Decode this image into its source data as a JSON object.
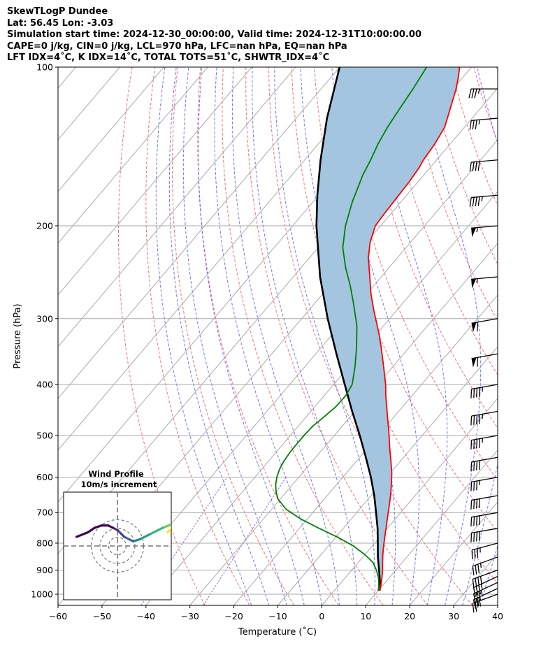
{
  "header": {
    "line1": "SkewTLogP Dundee",
    "line2": "Lat: 56.45   Lon: -3.03",
    "line3": "Simulation start time: 2024-12-30_00:00:00, Valid time: 2024-12-31T10:00:00.00",
    "line4": "CAPE=0 j/kg, CIN=0 j/kg, LCL=970 hPa, LFC=nan hPa, EQ=nan hPa",
    "line5": "LFT IDX=4˚C, K IDX=14˚C, TOTAL TOTS=51˚C, SHWTR_IDX=4˚C"
  },
  "colors": {
    "temperature": "#ff0000",
    "dewpoint": "#008000",
    "parcel": "#000000",
    "cape_fill": "#a3c5df",
    "dry_adiabat": "#ff5555",
    "moist_adiabat": "#4a55ff",
    "mixing_ratio": "#9a4fd0",
    "isotherm": "#aaaaaa"
  },
  "chart_data": {
    "type": "line",
    "xlabel": "Temperature (˚C)",
    "ylabel": "Pressure (hPa)",
    "scale": "skew-T log-P",
    "xlim": [
      -60,
      40
    ],
    "ylim": [
      1050,
      100
    ],
    "x_ticks": [
      "−60",
      "−50",
      "−40",
      "−30",
      "−20",
      "−10",
      "0",
      "10",
      "20",
      "30",
      "40"
    ],
    "y_ticks": [
      "100",
      "200",
      "300",
      "400",
      "500",
      "600",
      "700",
      "800",
      "900",
      "1000"
    ],
    "grid": true,
    "series": [
      {
        "key": "temperature",
        "pressure": [
          985,
          960,
          930,
          900,
          870,
          840,
          800,
          760,
          720,
          680,
          650,
          620,
          590,
          560,
          530,
          510,
          490,
          460,
          420,
          400,
          370,
          340,
          320,
          290,
          270,
          250,
          230,
          215,
          200,
          190,
          175,
          165,
          155,
          150,
          140,
          130,
          120,
          110,
          105,
          100
        ],
        "values": [
          10.3,
          9.5,
          8.3,
          7.0,
          5.5,
          4.0,
          2.1,
          0.2,
          -1.8,
          -3.9,
          -5.6,
          -7.5,
          -9.6,
          -12.1,
          -14.8,
          -16.6,
          -18.5,
          -21.6,
          -26.0,
          -28.2,
          -32.1,
          -36.4,
          -39.6,
          -45.1,
          -48.9,
          -52.6,
          -56.6,
          -59.2,
          -61.2,
          -61.5,
          -61.8,
          -62.0,
          -62.5,
          -63.0,
          -63.5,
          -64.5,
          -66.8,
          -69.3,
          -70.9,
          -72.7
        ]
      },
      {
        "key": "dewpoint",
        "pressure": [
          985,
          960,
          930,
          900,
          870,
          840,
          810,
          780,
          750,
          720,
          690,
          660,
          640,
          620,
          600,
          580,
          560,
          540,
          520,
          500,
          480,
          460,
          440,
          420,
          400,
          370,
          340,
          310,
          280,
          260,
          240,
          220,
          200,
          180,
          160,
          150,
          140,
          130,
          120,
          110,
          100
        ],
        "values": [
          10.0,
          9.0,
          7.5,
          5.6,
          3.3,
          -0.2,
          -4.3,
          -9.5,
          -15.5,
          -21.5,
          -26.7,
          -30.5,
          -32.3,
          -33.8,
          -35.0,
          -35.9,
          -36.5,
          -36.8,
          -36.9,
          -36.9,
          -36.7,
          -35.9,
          -35.2,
          -35.1,
          -35.8,
          -38.6,
          -42.0,
          -46.0,
          -51.3,
          -55.3,
          -59.9,
          -64.4,
          -68.0,
          -71.1,
          -73.9,
          -75.0,
          -76.4,
          -77.5,
          -78.3,
          -79.1,
          -80.2
        ]
      },
      {
        "key": "parcel",
        "pressure": [
          985,
          970,
          940,
          900,
          850,
          800,
          750,
          700,
          650,
          600,
          550,
          500,
          450,
          400,
          350,
          300,
          250,
          200,
          175,
          150,
          125,
          100
        ],
        "values": [
          10.3,
          9.8,
          8.3,
          6.2,
          3.4,
          0.7,
          -2.2,
          -5.6,
          -9.3,
          -13.6,
          -18.6,
          -24.2,
          -30.6,
          -37.5,
          -45.3,
          -54.1,
          -63.9,
          -74.6,
          -80.3,
          -86.4,
          -93.0,
          -100.0
        ]
      }
    ],
    "wind_barbs": [
      {
        "pressure": 1000,
        "direction": 250,
        "speed": 25
      },
      {
        "pressure": 975,
        "direction": 245,
        "speed": 30
      },
      {
        "pressure": 950,
        "direction": 245,
        "speed": 35
      },
      {
        "pressure": 925,
        "direction": 245,
        "speed": 35
      },
      {
        "pressure": 900,
        "direction": 250,
        "speed": 40
      },
      {
        "pressure": 850,
        "direction": 250,
        "speed": 35
      },
      {
        "pressure": 800,
        "direction": 255,
        "speed": 35
      },
      {
        "pressure": 750,
        "direction": 260,
        "speed": 40
      },
      {
        "pressure": 700,
        "direction": 260,
        "speed": 40
      },
      {
        "pressure": 650,
        "direction": 260,
        "speed": 40
      },
      {
        "pressure": 600,
        "direction": 260,
        "speed": 35
      },
      {
        "pressure": 550,
        "direction": 260,
        "speed": 40
      },
      {
        "pressure": 500,
        "direction": 260,
        "speed": 45
      },
      {
        "pressure": 450,
        "direction": 260,
        "speed": 45
      },
      {
        "pressure": 400,
        "direction": 260,
        "speed": 45
      },
      {
        "pressure": 350,
        "direction": 260,
        "speed": 60
      },
      {
        "pressure": 300,
        "direction": 260,
        "speed": 60
      },
      {
        "pressure": 250,
        "direction": 265,
        "speed": 55
      },
      {
        "pressure": 200,
        "direction": 265,
        "speed": 55
      },
      {
        "pressure": 175,
        "direction": 265,
        "speed": 45
      },
      {
        "pressure": 150,
        "direction": 265,
        "speed": 40
      },
      {
        "pressure": 125,
        "direction": 265,
        "speed": 35
      },
      {
        "pressure": 110,
        "direction": 270,
        "speed": 35
      }
    ],
    "hodograph": {
      "title": "Wind Profile",
      "subtitle": "10m/s increment",
      "ring_step": 10,
      "u": [
        22,
        24,
        25,
        20,
        14,
        10,
        7,
        3,
        0,
        -2,
        -4,
        -7,
        -10,
        -13,
        -18
      ],
      "v": [
        6,
        8,
        10,
        8,
        5,
        3,
        2,
        4,
        7,
        8,
        9,
        9,
        8,
        6,
        4
      ]
    }
  }
}
